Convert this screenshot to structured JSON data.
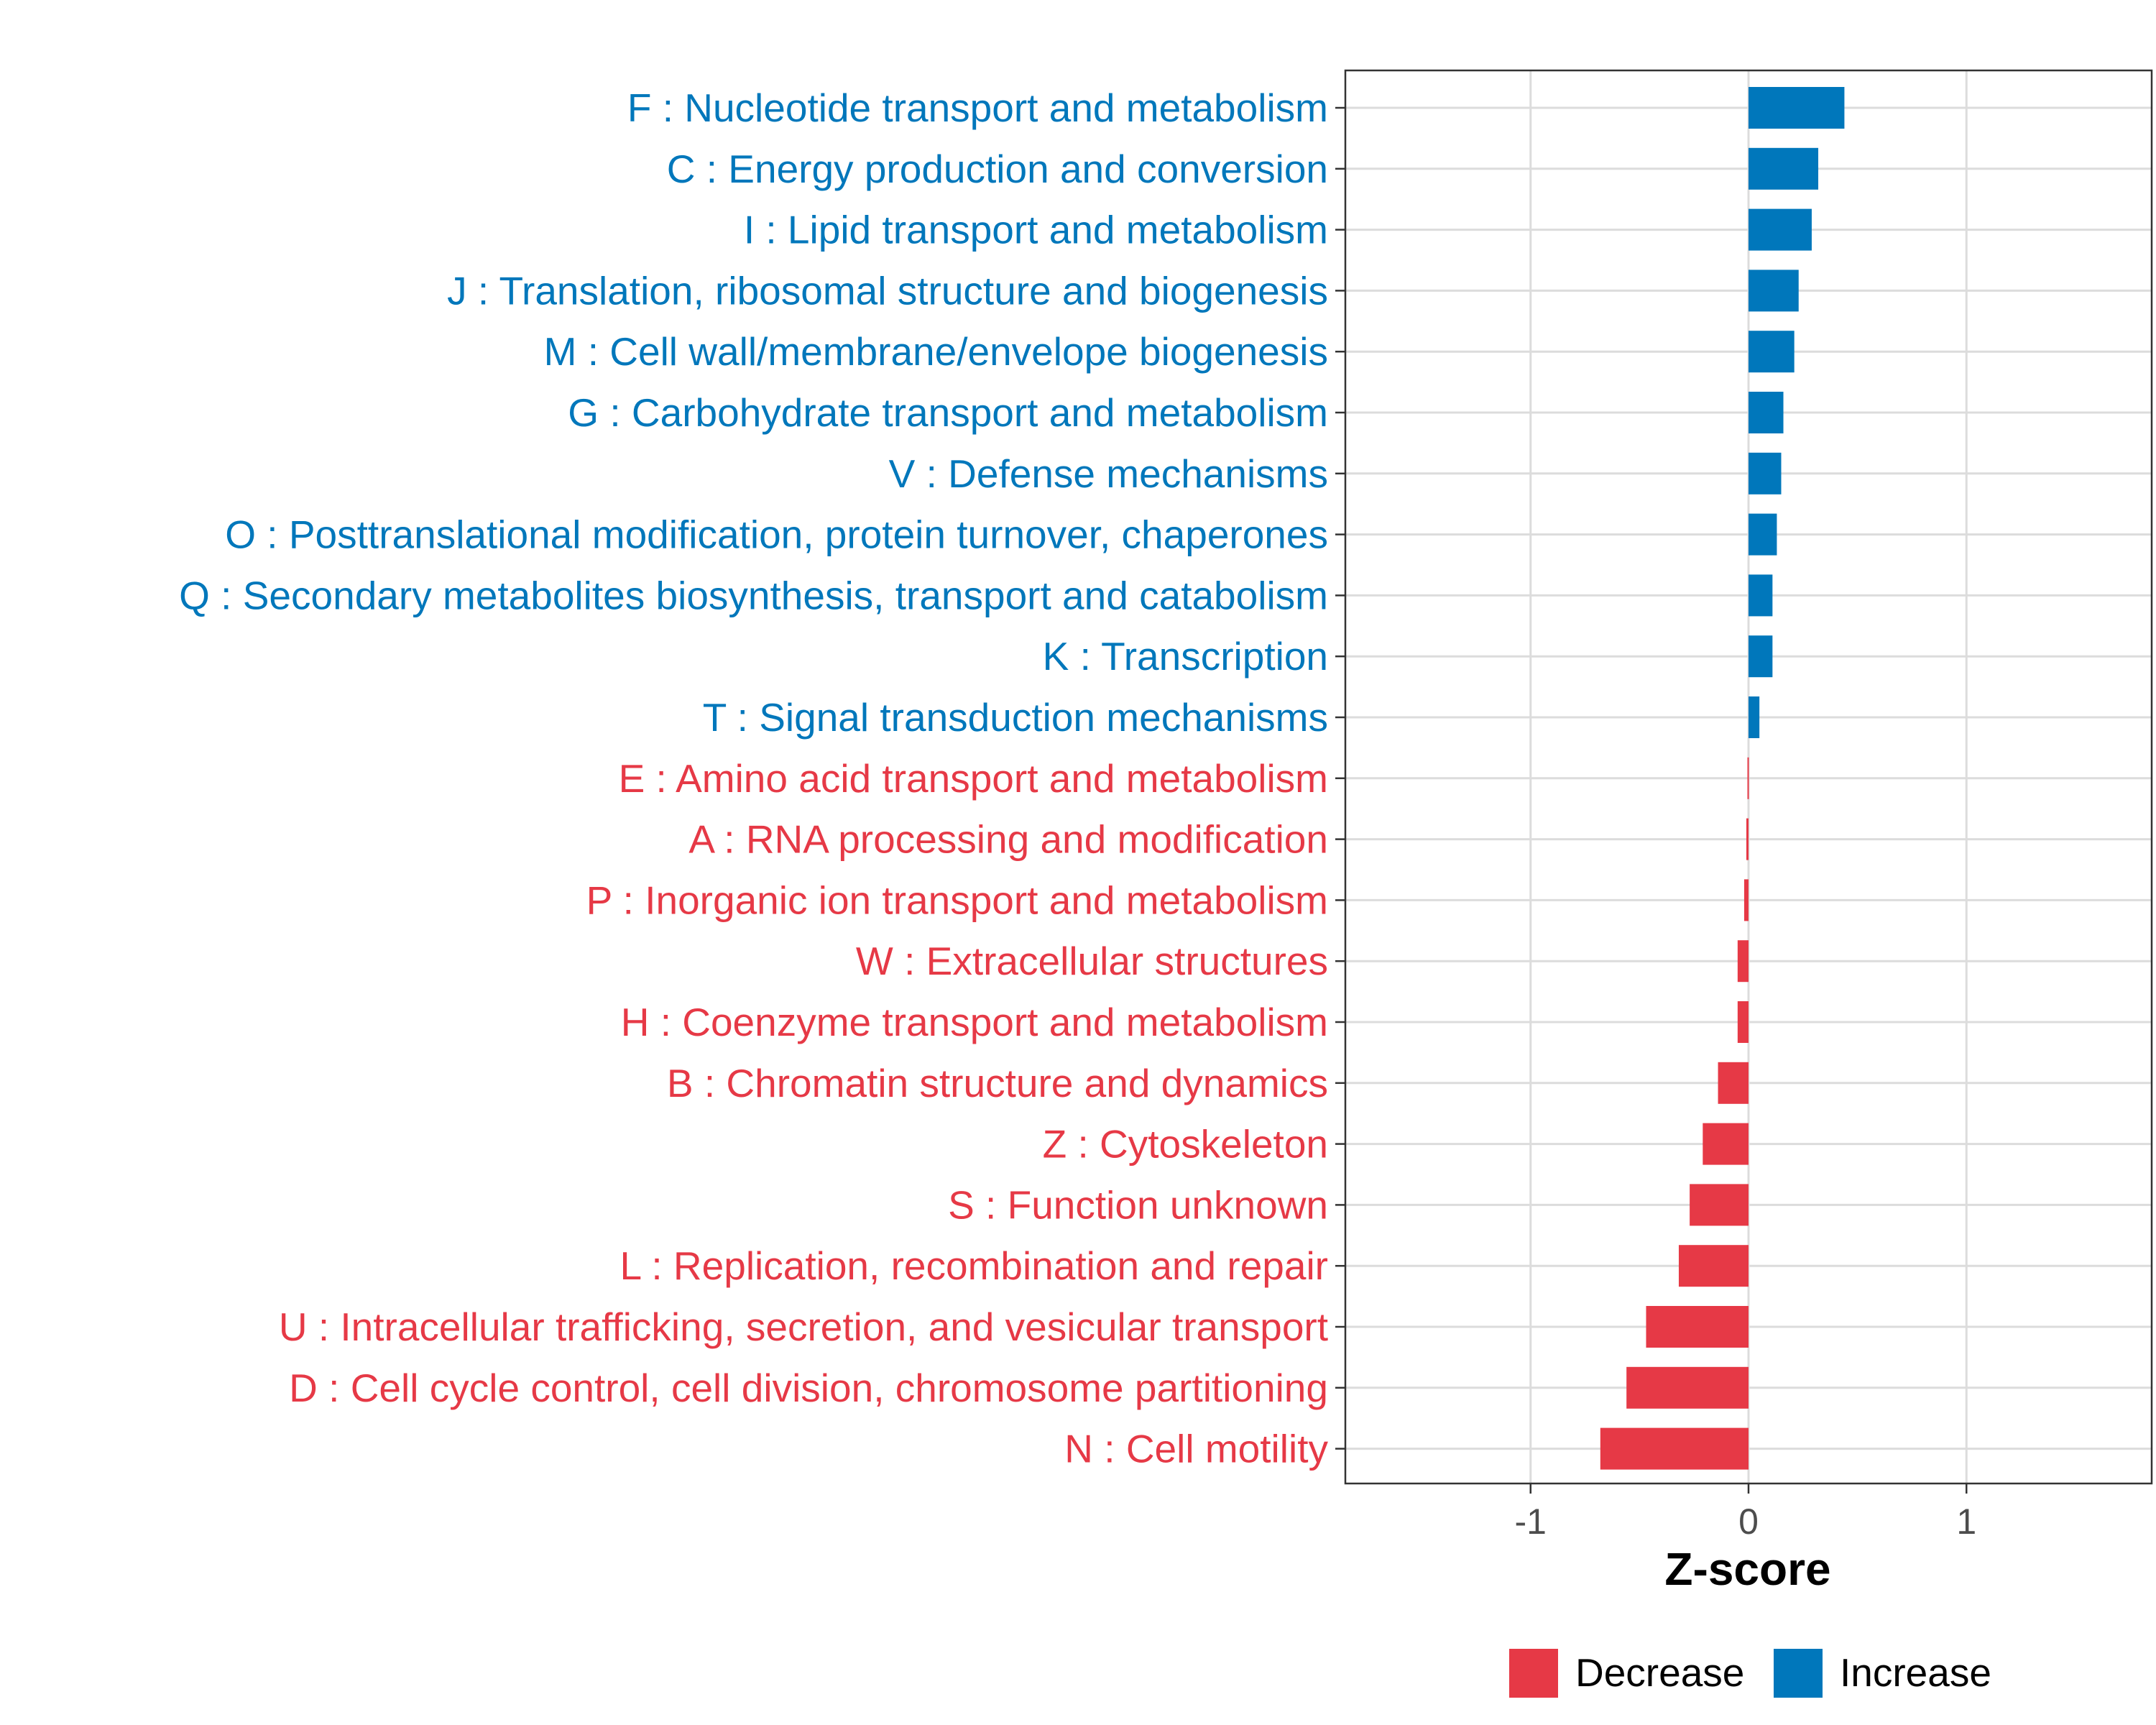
{
  "chart_data": {
    "type": "bar",
    "orientation": "horizontal",
    "title": "",
    "xlabel": "Z-score",
    "ylabel": "",
    "xlim": [
      -1.85,
      1.85
    ],
    "xticks": [
      -1,
      0,
      1
    ],
    "xtick_labels": [
      "-1",
      "0",
      "1"
    ],
    "grid": true,
    "legend_position": "bottom",
    "categories": [
      "F : Nucleotide transport and metabolism",
      "C : Energy production and conversion",
      "I : Lipid transport and metabolism",
      "J : Translation, ribosomal structure and biogenesis",
      "M : Cell wall/membrane/envelope biogenesis",
      "G : Carbohydrate transport and metabolism",
      "V : Defense mechanisms",
      "O : Posttranslational modification, protein turnover, chaperones",
      "Q : Secondary metabolites biosynthesis, transport and catabolism",
      "K : Transcription",
      "T : Signal transduction mechanisms",
      "E : Amino acid transport and metabolism",
      "A : RNA processing and modification",
      "P : Inorganic ion transport and metabolism",
      "W : Extracellular structures",
      "H : Coenzyme transport and metabolism",
      "B : Chromatin structure and dynamics",
      "Z : Cytoskeleton",
      "S : Function unknown",
      "L : Replication, recombination and repair",
      "U : Intracellular trafficking, secretion, and vesicular transport",
      "D : Cell cycle control, cell division, chromosome partitioning",
      "N : Cell motility"
    ],
    "values": [
      0.44,
      0.32,
      0.29,
      0.23,
      0.21,
      0.16,
      0.15,
      0.13,
      0.11,
      0.11,
      0.05,
      -0.005,
      -0.01,
      -0.02,
      -0.05,
      -0.05,
      -0.14,
      -0.21,
      -0.27,
      -0.32,
      -0.47,
      -0.56,
      -0.68
    ],
    "groups": [
      "Increase",
      "Increase",
      "Increase",
      "Increase",
      "Increase",
      "Increase",
      "Increase",
      "Increase",
      "Increase",
      "Increase",
      "Increase",
      "Decrease",
      "Decrease",
      "Decrease",
      "Decrease",
      "Decrease",
      "Decrease",
      "Decrease",
      "Decrease",
      "Decrease",
      "Decrease",
      "Decrease",
      "Decrease"
    ],
    "legend": [
      {
        "name": "Decrease",
        "color": "#E63946"
      },
      {
        "name": "Increase",
        "color": "#0077BB"
      }
    ]
  }
}
